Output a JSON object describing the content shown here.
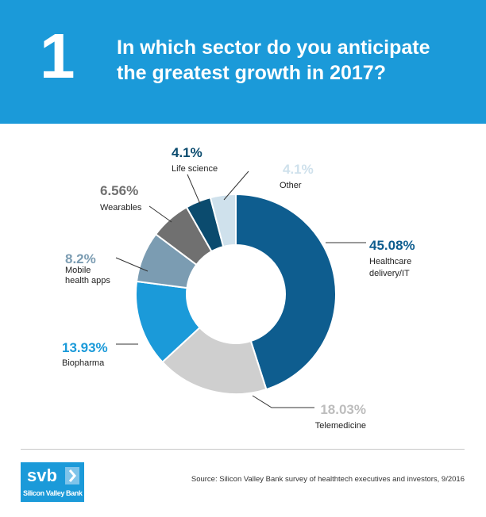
{
  "header": {
    "number": "1",
    "question": "In which sector do you anticipate the greatest growth in 2017?"
  },
  "colors": {
    "header_bg": "#1b9ad9",
    "leader_line": "#333333"
  },
  "chart_data": {
    "type": "pie",
    "donut": true,
    "title": "In which sector do you anticipate the greatest growth in 2017?",
    "slices": [
      {
        "label": "Healthcare delivery/IT",
        "label_lines": [
          "Healthcare",
          "delivery/IT"
        ],
        "value": 45.08,
        "value_label": "45.08%",
        "color": "#0e5d8f"
      },
      {
        "label": "Telemedicine",
        "label_lines": [
          "Telemedicine"
        ],
        "value": 18.03,
        "value_label": "18.03%",
        "color": "#cfcfcf"
      },
      {
        "label": "Biopharma",
        "label_lines": [
          "Biopharma"
        ],
        "value": 13.93,
        "value_label": "13.93%",
        "color": "#1b9ad9"
      },
      {
        "label": "Mobile health apps",
        "label_lines": [
          "Mobile",
          "health apps"
        ],
        "value": 8.2,
        "value_label": "8.2%",
        "color": "#7b9cb2"
      },
      {
        "label": "Wearables",
        "label_lines": [
          "Wearables"
        ],
        "value": 6.56,
        "value_label": "6.56%",
        "color": "#707070"
      },
      {
        "label": "Life science",
        "label_lines": [
          "Life science"
        ],
        "value": 4.1,
        "value_label": "4.1%",
        "color": "#0b4b6e"
      },
      {
        "label": "Other",
        "label_lines": [
          "Other"
        ],
        "value": 4.1,
        "value_label": "4.1%",
        "color": "#cfe1ec"
      }
    ]
  },
  "logo": {
    "wordmark": "svb",
    "name": "Silicon Valley Bank"
  },
  "footer": {
    "source": "Source: Silicon Valley Bank survey of healthtech executives and investors, 9/2016"
  }
}
